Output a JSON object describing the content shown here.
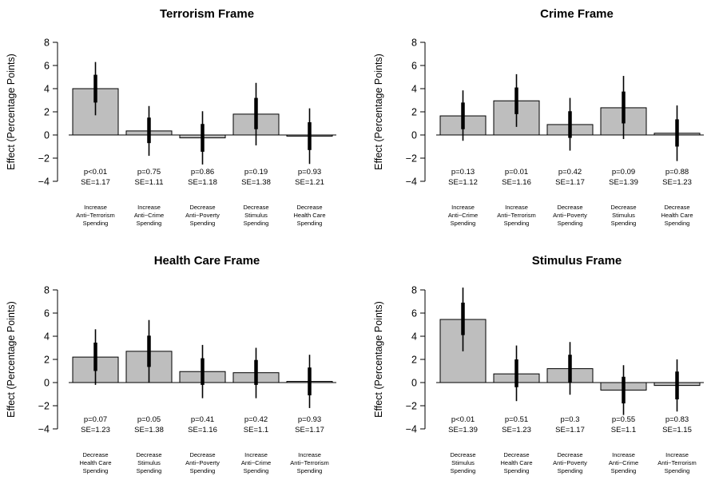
{
  "colors": {
    "bar_fill": "#bebebe",
    "bar_stroke": "#000000",
    "ci": "#000000"
  },
  "chart_data": [
    {
      "type": "bar",
      "title": "Terrorism Frame",
      "ylabel": "Effect (Percentage Points)",
      "ylim": [
        -4,
        8
      ],
      "yticks": [
        -4,
        -2,
        0,
        2,
        4,
        6,
        8
      ],
      "categories": [
        [
          "Increase",
          "Anti−Terrorism",
          "Spending"
        ],
        [
          "Increase",
          "Anti−Crime",
          "Spending"
        ],
        [
          "Decrease",
          "Anti−Poverty",
          "Spending"
        ],
        [
          "Decrease",
          "Stimulus",
          "Spending"
        ],
        [
          "Decrease",
          "Health Care",
          "Spending"
        ]
      ],
      "values": [
        4.0,
        0.35,
        -0.25,
        1.8,
        -0.1
      ],
      "ci90": [
        [
          2.8,
          5.2
        ],
        [
          -0.7,
          1.5
        ],
        [
          -1.45,
          0.95
        ],
        [
          0.5,
          3.2
        ],
        [
          -1.3,
          1.1
        ]
      ],
      "ci95": [
        [
          1.7,
          6.3
        ],
        [
          -1.8,
          2.5
        ],
        [
          -2.55,
          2.05
        ],
        [
          -0.9,
          4.5
        ],
        [
          -2.5,
          2.3
        ]
      ],
      "p_labels": [
        "p<0.01",
        "p=0.75",
        "p=0.86",
        "p=0.19",
        "p=0.93"
      ],
      "se_labels": [
        "SE=1.17",
        "SE=1.11",
        "SE=1.18",
        "SE=1.38",
        "SE=1.21"
      ]
    },
    {
      "type": "bar",
      "title": "Crime Frame",
      "ylabel": "Effect (Percentage Points)",
      "ylim": [
        -4,
        8
      ],
      "yticks": [
        -4,
        -2,
        0,
        2,
        4,
        6,
        8
      ],
      "categories": [
        [
          "Increase",
          "Anti−Crime",
          "Spending"
        ],
        [
          "Increase",
          "Anti−Terrorism",
          "Spending"
        ],
        [
          "Decrease",
          "Anti−Poverty",
          "Spending"
        ],
        [
          "Decrease",
          "Stimulus",
          "Spending"
        ],
        [
          "Decrease",
          "Health Care",
          "Spending"
        ]
      ],
      "values": [
        1.65,
        2.95,
        0.9,
        2.35,
        0.15
      ],
      "ci90": [
        [
          0.5,
          2.8
        ],
        [
          1.8,
          4.1
        ],
        [
          -0.25,
          2.05
        ],
        [
          1.0,
          3.75
        ],
        [
          -1.0,
          1.35
        ]
      ],
      "ci95": [
        [
          -0.5,
          3.85
        ],
        [
          0.7,
          5.25
        ],
        [
          -1.35,
          3.2
        ],
        [
          -0.35,
          5.1
        ],
        [
          -2.25,
          2.55
        ]
      ],
      "p_labels": [
        "p=0.13",
        "p=0.01",
        "p=0.42",
        "p=0.09",
        "p=0.88"
      ],
      "se_labels": [
        "SE=1.12",
        "SE=1.16",
        "SE=1.17",
        "SE=1.39",
        "SE=1.23"
      ]
    },
    {
      "type": "bar",
      "title": "Health Care Frame",
      "ylabel": "Effect (Percentage Points)",
      "ylim": [
        -4,
        8
      ],
      "yticks": [
        -4,
        -2,
        0,
        2,
        4,
        6,
        8
      ],
      "categories": [
        [
          "Decrease",
          "Health Care",
          "Spending"
        ],
        [
          "Decrease",
          "Stimulus",
          "Spending"
        ],
        [
          "Decrease",
          "Anti−Poverty",
          "Spending"
        ],
        [
          "Increase",
          "Anti−Crime",
          "Spending"
        ],
        [
          "Increase",
          "Anti−Terrorism",
          "Spending"
        ]
      ],
      "values": [
        2.2,
        2.7,
        0.95,
        0.85,
        0.1
      ],
      "ci90": [
        [
          1.0,
          3.45
        ],
        [
          1.35,
          4.05
        ],
        [
          -0.2,
          2.1
        ],
        [
          -0.2,
          1.95
        ],
        [
          -1.1,
          1.3
        ]
      ],
      "ci95": [
        [
          -0.2,
          4.6
        ],
        [
          0.0,
          5.4
        ],
        [
          -1.35,
          3.25
        ],
        [
          -1.35,
          3.0
        ],
        [
          -2.2,
          2.4
        ]
      ],
      "p_labels": [
        "p=0.07",
        "p=0.05",
        "p=0.41",
        "p=0.42",
        "p=0.93"
      ],
      "se_labels": [
        "SE=1.23",
        "SE=1.38",
        "SE=1.16",
        "SE=1.1",
        "SE=1.17"
      ]
    },
    {
      "type": "bar",
      "title": "Stimulus Frame",
      "ylabel": "Effect (Percentage Points)",
      "ylim": [
        -4,
        8
      ],
      "yticks": [
        -4,
        -2,
        0,
        2,
        4,
        6,
        8
      ],
      "categories": [
        [
          "Decrease",
          "Stimulus",
          "Spending"
        ],
        [
          "Decrease",
          "Health Care",
          "Spending"
        ],
        [
          "Decrease",
          "Anti−Poverty",
          "Spending"
        ],
        [
          "Increase",
          "Anti−Crime",
          "Spending"
        ],
        [
          "Increase",
          "Anti−Terrorism",
          "Spending"
        ]
      ],
      "values": [
        5.45,
        0.75,
        1.2,
        -0.65,
        -0.25
      ],
      "ci90": [
        [
          4.1,
          6.9
        ],
        [
          -0.4,
          2.0
        ],
        [
          0.0,
          2.4
        ],
        [
          -1.8,
          0.5
        ],
        [
          -1.45,
          0.95
        ]
      ],
      "ci95": [
        [
          2.7,
          8.2
        ],
        [
          -1.6,
          3.2
        ],
        [
          -1.05,
          3.5
        ],
        [
          -2.8,
          1.5
        ],
        [
          -2.5,
          2.0
        ]
      ],
      "p_labels": [
        "p<0.01",
        "p=0.51",
        "p=0.3",
        "p=0.55",
        "p=0.83"
      ],
      "se_labels": [
        "SE=1.39",
        "SE=1.23",
        "SE=1.17",
        "SE=1.1",
        "SE=1.15"
      ]
    }
  ]
}
